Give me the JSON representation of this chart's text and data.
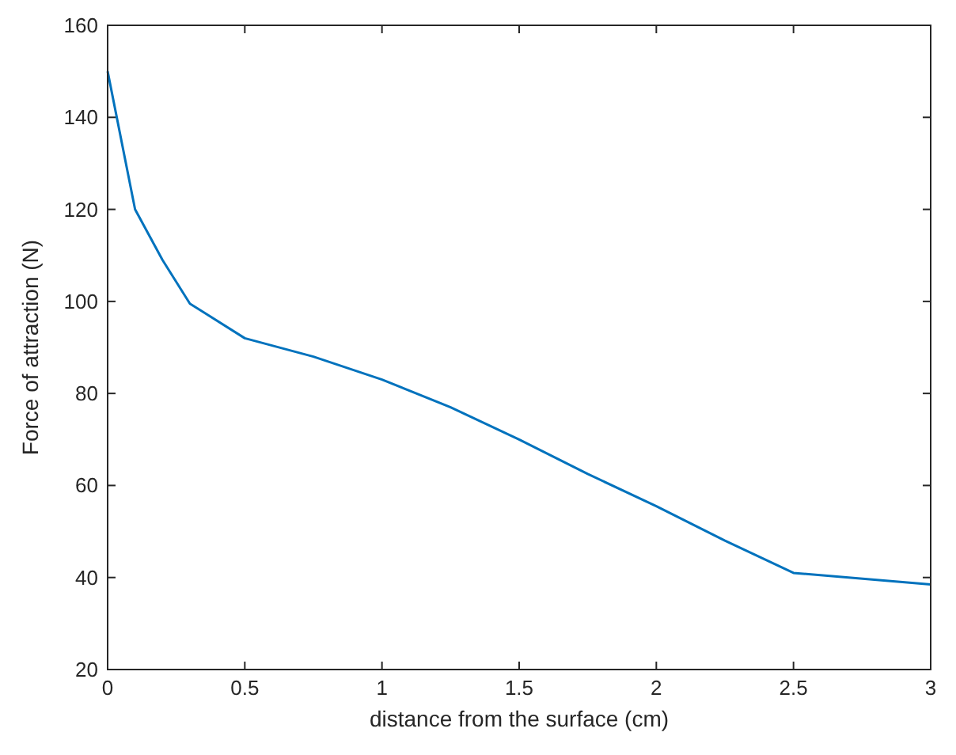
{
  "chart_data": {
    "type": "line",
    "xlabel": "distance from the surface (cm)",
    "ylabel": "Force of attraction (N)",
    "x": [
      0,
      0.1,
      0.2,
      0.3,
      0.5,
      0.75,
      1,
      1.25,
      1.5,
      1.75,
      2,
      2.25,
      2.5,
      3
    ],
    "series": [
      {
        "color": "#0072bd",
        "values": [
          150,
          120,
          109,
          99.5,
          92,
          88,
          83,
          77,
          70,
          62.5,
          55.5,
          48,
          41,
          38.5
        ]
      }
    ],
    "xlim": [
      0,
      3
    ],
    "xticks": [
      0,
      0.5,
      1,
      1.5,
      2,
      2.5,
      3
    ],
    "ylim": [
      20,
      160
    ],
    "yticks": [
      20,
      40,
      60,
      80,
      100,
      120,
      140,
      160
    ],
    "grid": false,
    "marker": "none",
    "line_style": "solid"
  }
}
